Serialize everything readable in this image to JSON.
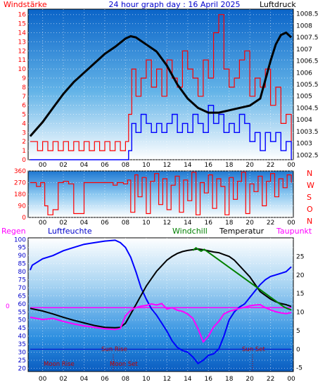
{
  "header": {
    "left_label": "Windstärke",
    "title": "24 hour graph day : 16 April 2025",
    "right_label": "Luftdruck"
  },
  "panel2": {
    "compass_labels": [
      "N",
      "W",
      "S",
      "O",
      "N"
    ]
  },
  "panel3": {
    "labels": {
      "regen": "Regen",
      "luftfeuchte": "Luftfeuchte",
      "windchill": "Windchill",
      "temperatur": "Temperatur",
      "taupunkt": "Taupunkt"
    },
    "zero_label": "0",
    "annotations": {
      "sun_rise": "Sun Rise",
      "sun_set": "Sun Set",
      "moon_rise": "Moon Rise",
      "moon_set": "Moon Set"
    }
  },
  "colors": {
    "wind_gust": "#ff0000",
    "wind_avg": "#0000ff",
    "pressure": "#000000",
    "direction": "#ff0000",
    "humidity": "#0000ff",
    "temperature": "#000000",
    "windchill": "#008000",
    "dewpoint": "#ff00ff",
    "rain": "#ff00ff",
    "annotation": "#c00000"
  },
  "chart_data": [
    {
      "type": "line",
      "x_ticks": [
        "00",
        "02",
        "04",
        "06",
        "08",
        "10",
        "12",
        "14",
        "16",
        "18",
        "20",
        "22",
        "00"
      ],
      "y_left_ticks": [
        0,
        1,
        2,
        3,
        4,
        5,
        6,
        7,
        8,
        9,
        10,
        11,
        12,
        13,
        14,
        15,
        16
      ],
      "y_right_ticks": [
        1002.5,
        1003,
        1003.5,
        1004,
        1004.5,
        1005,
        1005.5,
        1006,
        1006.5,
        1007,
        1007.5,
        1008,
        1008.5
      ],
      "ylim_left": [
        0,
        16.6
      ],
      "ylim_right": [
        1002.3,
        1008.7
      ],
      "xlim": [
        -1.4,
        24.2
      ],
      "series": [
        {
          "name": "Luftdruck",
          "axis": "right",
          "x": [
            -1.2,
            0,
            1,
            2,
            3,
            4,
            5,
            6,
            7,
            8,
            8.5,
            9,
            10,
            11,
            12,
            13,
            14,
            15,
            16,
            17,
            18,
            19,
            20,
            21,
            22,
            22.5,
            23,
            23.5,
            24
          ],
          "values": [
            1003.3,
            1003.9,
            1004.5,
            1005.1,
            1005.6,
            1006.0,
            1006.4,
            1006.8,
            1007.1,
            1007.45,
            1007.55,
            1007.5,
            1007.2,
            1006.9,
            1006.3,
            1005.5,
            1004.9,
            1004.5,
            1004.3,
            1004.3,
            1004.4,
            1004.5,
            1004.6,
            1004.9,
            1006.5,
            1007.2,
            1007.6,
            1007.7,
            1007.5
          ]
        },
        {
          "name": "Windstärke Böen",
          "axis": "left",
          "x": [
            -1.2,
            -0.5,
            0,
            0.5,
            1,
            1.5,
            2,
            2.5,
            3,
            3.5,
            4,
            4.5,
            5,
            5.5,
            6,
            6.5,
            7,
            7.5,
            8,
            8.3,
            8.6,
            9,
            9.5,
            10,
            10.5,
            11,
            11.5,
            12,
            12.5,
            13,
            13.5,
            14,
            14.5,
            15,
            15.5,
            16,
            16.5,
            17,
            17.5,
            18,
            18.5,
            19,
            19.5,
            20,
            20.5,
            21,
            21.5,
            22,
            22.5,
            23,
            23.5,
            24
          ],
          "values": [
            2,
            1,
            2,
            1,
            2,
            1,
            2,
            1,
            2,
            1,
            2,
            1,
            2,
            1,
            2,
            1,
            2,
            1,
            2,
            5,
            10,
            7,
            9,
            11,
            8,
            10,
            7,
            11,
            9,
            8,
            12,
            10,
            9,
            7,
            11,
            9,
            14,
            16,
            10,
            8,
            9,
            11,
            12,
            7,
            9,
            8,
            10,
            6,
            8,
            4,
            5,
            2
          ]
        },
        {
          "name": "Windstärke Mittel",
          "axis": "left",
          "x": [
            -1.2,
            -0.5,
            0,
            1,
            2,
            3,
            4,
            5,
            6,
            7,
            8,
            8.3,
            8.6,
            9,
            9.5,
            10,
            10.5,
            11,
            11.5,
            12,
            12.5,
            13,
            13.5,
            14,
            14.5,
            15,
            15.5,
            16,
            16.5,
            17,
            17.5,
            18,
            18.5,
            19,
            19.5,
            20,
            20.5,
            21,
            21.5,
            22,
            22.5,
            23,
            23.5,
            24
          ],
          "values": [
            0,
            0,
            0,
            0,
            0,
            0,
            0,
            0,
            0,
            0,
            0,
            1,
            4,
            3,
            5,
            4,
            3,
            4,
            3,
            4,
            5,
            3,
            4,
            3,
            5,
            4,
            3,
            6,
            4,
            5,
            3,
            4,
            3,
            5,
            4,
            2,
            3,
            1,
            3,
            2,
            3,
            1,
            2,
            0
          ]
        }
      ]
    },
    {
      "type": "line",
      "x_ticks": [
        "00",
        "02",
        "04",
        "06",
        "08",
        "10",
        "12",
        "14",
        "16",
        "18",
        "20",
        "22",
        "00"
      ],
      "y_ticks": [
        0,
        90,
        180,
        270,
        360
      ],
      "ylim": [
        0,
        360
      ],
      "xlim": [
        -1.4,
        24.2
      ],
      "series": [
        {
          "name": "Windrichtung",
          "x": [
            -1.2,
            -0.6,
            -0.2,
            0.2,
            0.5,
            1,
            1.5,
            2,
            2.5,
            3,
            4,
            5,
            6,
            6.8,
            7.2,
            7.8,
            8.2,
            8.5,
            8.9,
            9.2,
            9.6,
            10,
            10.4,
            10.8,
            11.2,
            11.6,
            12,
            12.4,
            12.8,
            13.2,
            13.6,
            14,
            14.4,
            14.8,
            15.2,
            15.6,
            16,
            16.4,
            16.8,
            17.2,
            17.6,
            18,
            18.4,
            18.8,
            19.2,
            19.6,
            20,
            20.4,
            20.8,
            21.2,
            21.6,
            22,
            22.4,
            22.8,
            23.2,
            23.6,
            24
          ],
          "values": [
            270,
            240,
            270,
            90,
            20,
            60,
            270,
            280,
            260,
            30,
            270,
            270,
            270,
            250,
            270,
            260,
            290,
            40,
            330,
            160,
            310,
            30,
            280,
            340,
            100,
            300,
            60,
            250,
            320,
            40,
            290,
            130,
            350,
            20,
            270,
            190,
            330,
            70,
            300,
            240,
            20,
            310,
            140,
            280,
            350,
            30,
            260,
            200,
            320,
            90,
            280,
            340,
            160,
            300,
            230,
            330,
            270
          ]
        }
      ]
    },
    {
      "type": "line",
      "x_ticks": [
        "00",
        "02",
        "04",
        "06",
        "08",
        "10",
        "12",
        "14",
        "16",
        "18",
        "20",
        "22",
        "00"
      ],
      "y_left_ticks": [
        100,
        95,
        90,
        85,
        80,
        75,
        70,
        65,
        60,
        55,
        50,
        45,
        40,
        35,
        30,
        25,
        20
      ],
      "y_right_ticks": [
        -5,
        0,
        5,
        10,
        15,
        20,
        25
      ],
      "ylim_left": [
        18,
        101
      ],
      "ylim_right": [
        -6,
        30
      ],
      "xlim": [
        -1.4,
        24.2
      ],
      "series": [
        {
          "name": "Luftfeuchte",
          "axis": "left",
          "x": [
            -1.2,
            -1,
            -0.5,
            0,
            1,
            2,
            3,
            4,
            5,
            6,
            7,
            7.5,
            8,
            8.5,
            9,
            9.5,
            10,
            10.5,
            11,
            11.5,
            12,
            12.5,
            13,
            13.5,
            14,
            14.5,
            15,
            15.5,
            16,
            16.5,
            17,
            17.5,
            18,
            18.5,
            19,
            19.5,
            20,
            20.5,
            21,
            21.5,
            22,
            22.5,
            23,
            23.5,
            24
          ],
          "values": [
            81,
            84,
            86,
            88,
            90,
            93,
            95,
            97,
            98,
            99,
            99.5,
            98,
            95,
            89,
            80,
            70,
            63,
            57,
            53,
            48,
            43,
            37,
            33,
            31,
            30,
            27,
            23,
            25,
            28,
            29,
            32,
            40,
            50,
            55,
            58,
            60,
            64,
            68,
            72,
            75,
            77,
            78,
            79,
            80,
            83
          ]
        },
        {
          "name": "Temperatur",
          "axis": "right",
          "x": [
            -1.2,
            0,
            1,
            2,
            3,
            4,
            5,
            6,
            7,
            7.5,
            8,
            8.5,
            9,
            9.5,
            10,
            10.5,
            11,
            11.5,
            12,
            12.5,
            13,
            13.5,
            14,
            14.5,
            15,
            15.5,
            16,
            16.5,
            17,
            17.5,
            18,
            18.5,
            19,
            19.5,
            20,
            20.5,
            21,
            21.5,
            22,
            22.5,
            23,
            23.5,
            24
          ],
          "values": [
            11,
            10.3,
            9.5,
            8.6,
            7.8,
            7.1,
            6.4,
            5.9,
            5.8,
            5.9,
            7,
            9.5,
            12,
            14.5,
            17,
            19,
            21,
            22.5,
            24,
            25,
            25.8,
            26.3,
            26.6,
            26.8,
            27,
            26.8,
            26.5,
            26.2,
            26,
            25.5,
            25,
            24,
            22.5,
            21,
            19.5,
            17.5,
            15.5,
            14.5,
            13.5,
            12.8,
            12.3,
            12,
            11.5
          ]
        },
        {
          "name": "Windchill",
          "axis": "right",
          "x": [
            14.5,
            14.8,
            15,
            15.3,
            15.6,
            23.3,
            23.6,
            24
          ],
          "values": [
            26.6,
            27.3,
            26.9,
            26.4,
            26.9,
            11.4,
            11,
            10.6
          ]
        },
        {
          "name": "Taupunkt",
          "axis": "right",
          "x": [
            -1.2,
            0,
            1,
            2,
            3,
            4,
            5,
            6,
            7,
            7.5,
            8,
            8.5,
            9,
            9.5,
            10,
            10.5,
            11,
            11.5,
            12,
            12.5,
            13,
            13.5,
            14,
            14.5,
            15,
            15.5,
            16,
            16.5,
            17,
            17.5,
            18,
            18.5,
            19,
            19.5,
            20,
            20.5,
            21,
            21.5,
            22,
            22.5,
            23,
            23.5,
            24
          ],
          "values": [
            8.6,
            8,
            8.3,
            7.5,
            6.8,
            6.3,
            5.9,
            5.5,
            5.3,
            5.6,
            9,
            10.5,
            11.2,
            11.6,
            11.8,
            12.2,
            11.9,
            12.3,
            10.8,
            11.2,
            10.5,
            10.2,
            9.5,
            8.3,
            5.5,
            2,
            3.5,
            6,
            7.5,
            9.5,
            10.2,
            10.6,
            11,
            11.3,
            11.7,
            11.9,
            12,
            11.2,
            10.6,
            10.1,
            9.8,
            9.6,
            9.9
          ]
        },
        {
          "name": "Regen",
          "axis": "right",
          "x": [
            -1.2,
            24
          ],
          "values": [
            11.2,
            11.2
          ]
        },
        {
          "name": "Sonnenlinie",
          "axis": "right",
          "x": [
            -1.2,
            24
          ],
          "values": [
            0,
            0
          ]
        }
      ]
    }
  ]
}
